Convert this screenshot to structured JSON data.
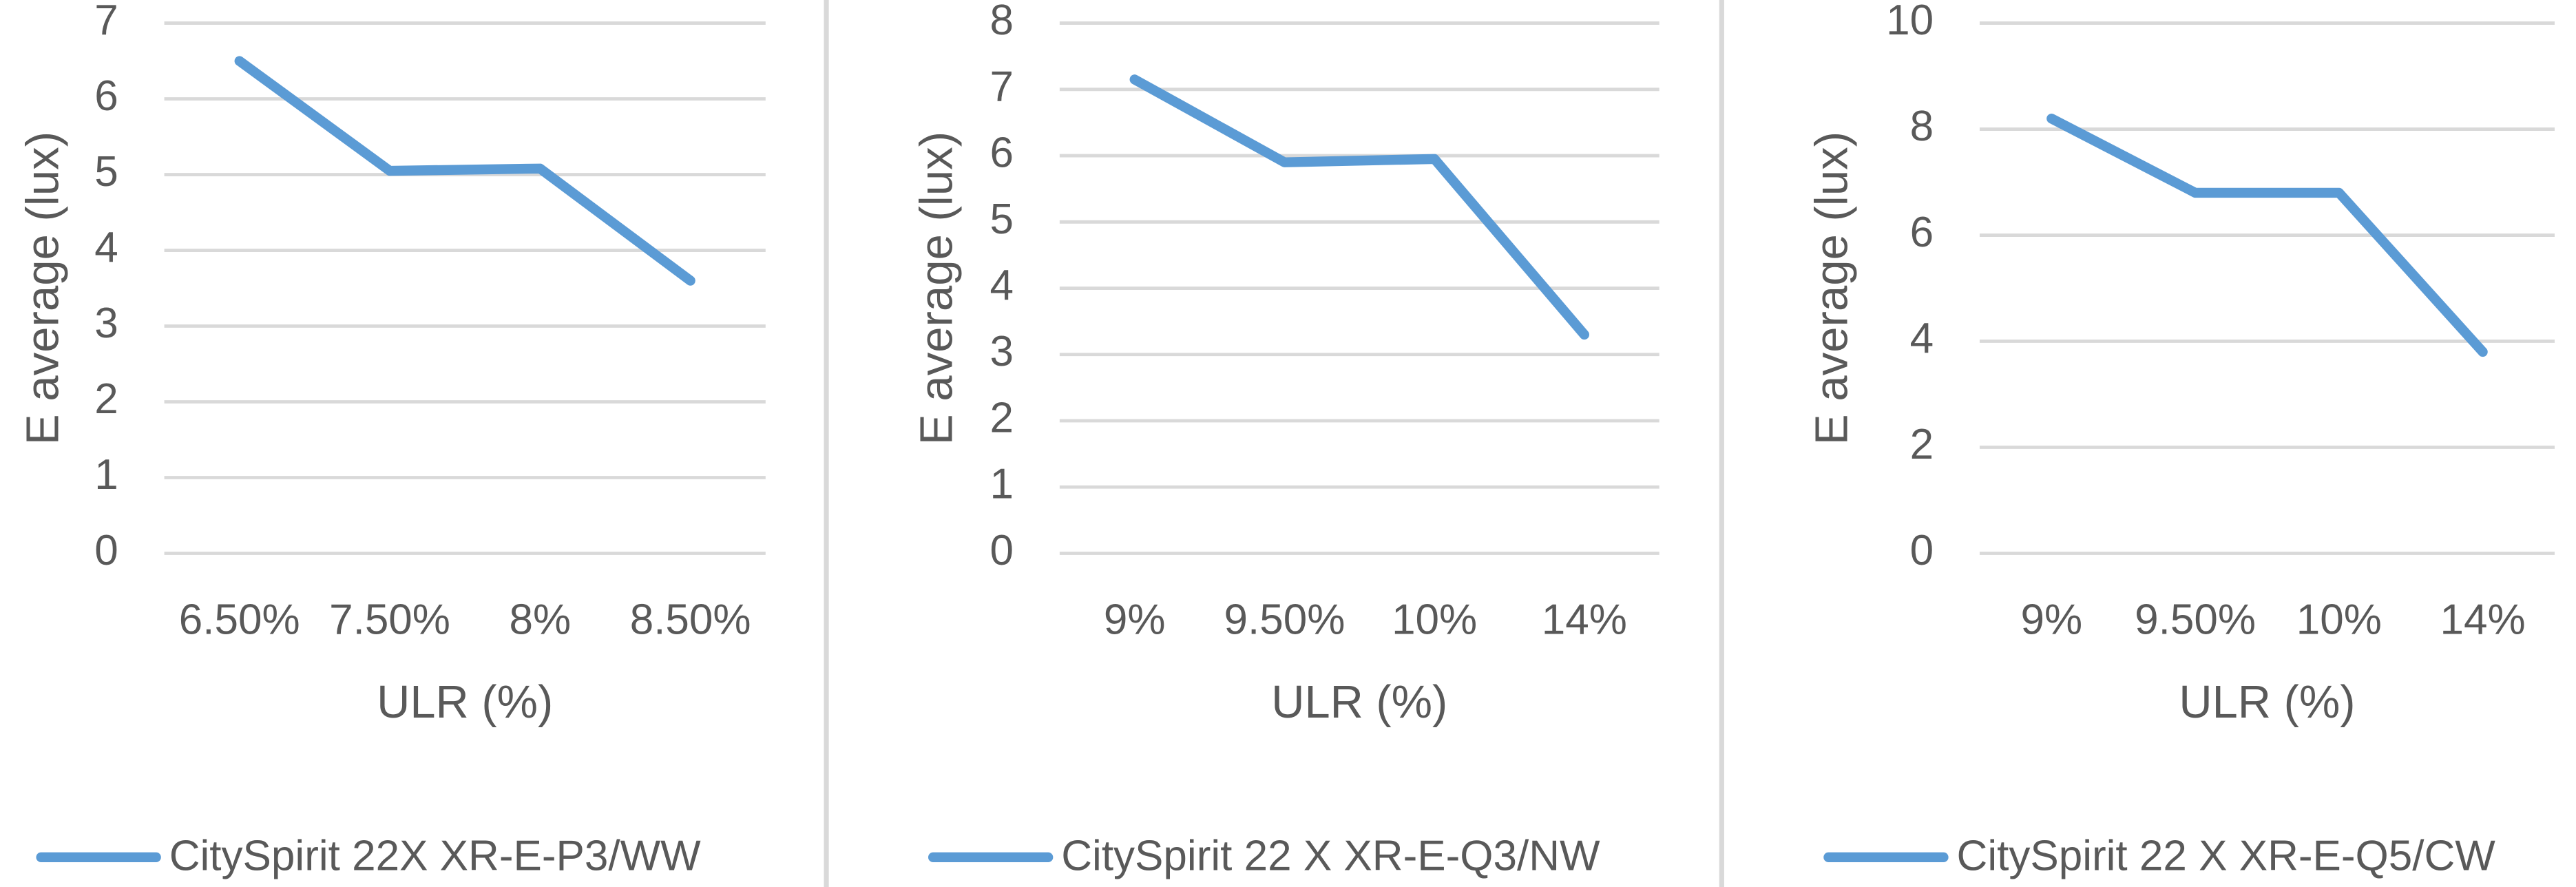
{
  "chart_data": [
    {
      "type": "line",
      "x_label": "ULR (%)",
      "y_label": "E average (lux)",
      "categories": [
        "6.50%",
        "7.50%",
        "8%",
        "8.50%"
      ],
      "series": [
        {
          "name": "CitySpirit 22X XR-E-P3/WW",
          "color": "#5b9bd5",
          "values": [
            6.5,
            5.05,
            5.08,
            3.6
          ]
        }
      ],
      "ylim": [
        0,
        7
      ],
      "yticks": [
        0,
        1,
        2,
        3,
        4,
        5,
        6,
        7
      ],
      "grid": true
    },
    {
      "type": "line",
      "x_label": "ULR (%)",
      "y_label": "E average (lux)",
      "categories": [
        "9%",
        "9.50%",
        "10%",
        "14%"
      ],
      "series": [
        {
          "name": "CitySpirit 22 X XR-E-Q3/NW",
          "color": "#5b9bd5",
          "values": [
            7.15,
            5.9,
            5.95,
            3.3
          ]
        }
      ],
      "ylim": [
        0,
        8
      ],
      "yticks": [
        0,
        1,
        2,
        3,
        4,
        5,
        6,
        7,
        8
      ],
      "grid": true
    },
    {
      "type": "line",
      "x_label": "ULR (%)",
      "y_label": "E average (lux)",
      "categories": [
        "9%",
        "9.50%",
        "10%",
        "14%"
      ],
      "series": [
        {
          "name": "CitySpirit 22 X XR-E-Q5/CW",
          "color": "#5b9bd5",
          "values": [
            8.2,
            6.8,
            6.8,
            3.8
          ]
        }
      ],
      "ylim": [
        0,
        10
      ],
      "yticks": [
        0,
        2,
        4,
        6,
        8,
        10
      ],
      "grid": true
    }
  ]
}
